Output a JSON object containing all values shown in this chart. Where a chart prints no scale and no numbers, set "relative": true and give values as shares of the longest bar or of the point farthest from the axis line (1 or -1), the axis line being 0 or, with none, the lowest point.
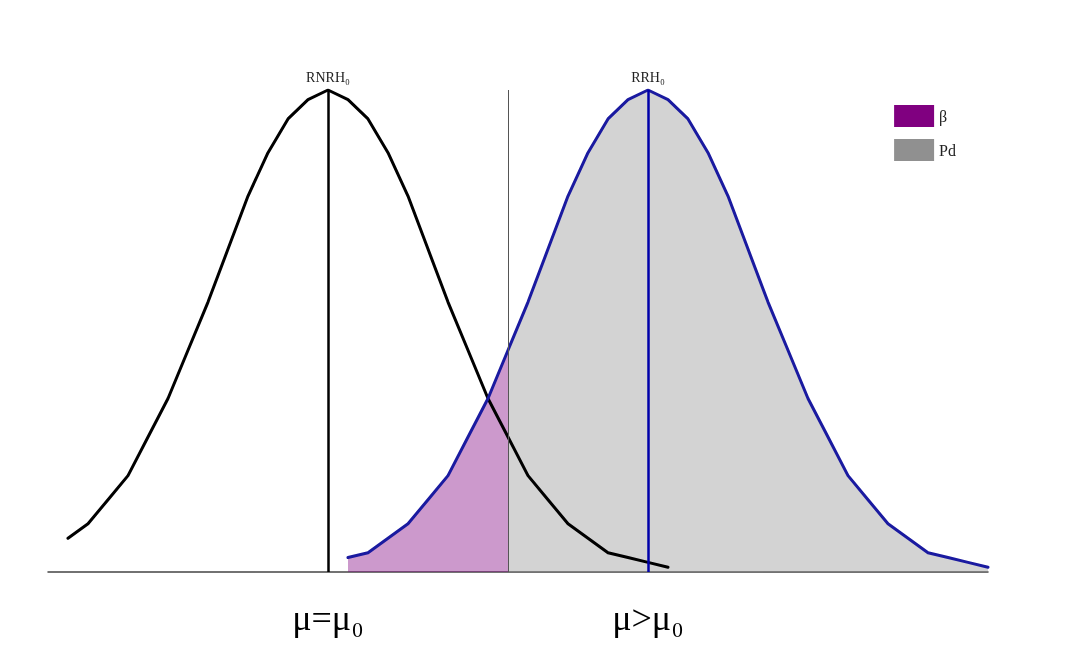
{
  "chart_data": {
    "type": "line",
    "relative": true,
    "categories": [
      null,
      null,
      null,
      null,
      null,
      null,
      null,
      null,
      null,
      null,
      null,
      null,
      null,
      null,
      "μ=μ₀",
      null,
      null,
      null,
      null,
      null,
      null,
      null,
      null,
      null,
      null,
      null,
      null,
      null,
      null,
      null,
      "μ>μ₀",
      null,
      null,
      null,
      null,
      null,
      null,
      null,
      null,
      null,
      null,
      null,
      null,
      null,
      null,
      null,
      null,
      null
    ],
    "series": [
      {
        "type": "line",
        "color": "#000000",
        "values": [
          null,
          0.07,
          0.1,
          0.15,
          0.2,
          0.28,
          0.36,
          0.46,
          0.56,
          0.67,
          0.78,
          0.87,
          0.94,
          0.98,
          1,
          0.98,
          0.94,
          0.87,
          0.78,
          0.67,
          0.56,
          0.46,
          0.36,
          0.28,
          0.2,
          0.15,
          0.1,
          0.07,
          0.04,
          0.03,
          0.02,
          0.01,
          null,
          null,
          null,
          null,
          null,
          null,
          null,
          null,
          null,
          null,
          null,
          null,
          null,
          null,
          null,
          null
        ]
      },
      {
        "type": "line",
        "color": "#1a1aa0",
        "values": [
          null,
          null,
          null,
          null,
          null,
          null,
          null,
          null,
          null,
          null,
          null,
          null,
          null,
          null,
          null,
          0.03,
          0.04,
          0.07,
          0.1,
          0.15,
          0.2,
          0.28,
          0.36,
          0.46,
          0.56,
          0.67,
          0.78,
          0.87,
          0.94,
          0.98,
          1,
          0.98,
          0.94,
          0.87,
          0.78,
          0.67,
          0.56,
          0.46,
          0.36,
          0.28,
          0.2,
          0.15,
          0.1,
          0.07,
          0.04,
          0.03,
          0.02,
          0.01
        ]
      },
      {
        "type": "area",
        "name": "β",
        "color": "#800080",
        "values": [
          null,
          null,
          null,
          null,
          null,
          null,
          null,
          null,
          null,
          null,
          null,
          null,
          null,
          null,
          null,
          0.03,
          0.04,
          0.07,
          0.1,
          0.15,
          0.2,
          0.28,
          0.36,
          0.46,
          null,
          null,
          null,
          null,
          null,
          null,
          null,
          null,
          null,
          null,
          null,
          null,
          null,
          null,
          null,
          null,
          null,
          null,
          null,
          null,
          null,
          null,
          null,
          null
        ]
      },
      {
        "type": "area",
        "name": "Pd",
        "color": "#909090",
        "values": [
          null,
          null,
          null,
          null,
          null,
          null,
          null,
          null,
          null,
          null,
          null,
          null,
          null,
          null,
          null,
          null,
          null,
          null,
          null,
          null,
          null,
          null,
          null,
          0.46,
          0.56,
          0.67,
          0.78,
          0.87,
          0.94,
          0.98,
          1,
          0.98,
          0.94,
          0.87,
          0.78,
          0.67,
          0.56,
          0.46,
          0.36,
          0.28,
          0.2,
          0.15,
          0.1,
          0.07,
          0.04,
          0.03,
          0.02,
          0.01
        ]
      }
    ],
    "ref_lines": [
      {
        "axis": "x",
        "value": "μ=μ₀",
        "label": "RNRH₀",
        "color": "#000000"
      },
      {
        "axis": "x",
        "value": "μ>μ₀",
        "label": "RRH₀",
        "color": "#0000aa"
      }
    ],
    "legend": "top right",
    "marker": "none",
    "line_style": "solid",
    "grid": false
  }
}
